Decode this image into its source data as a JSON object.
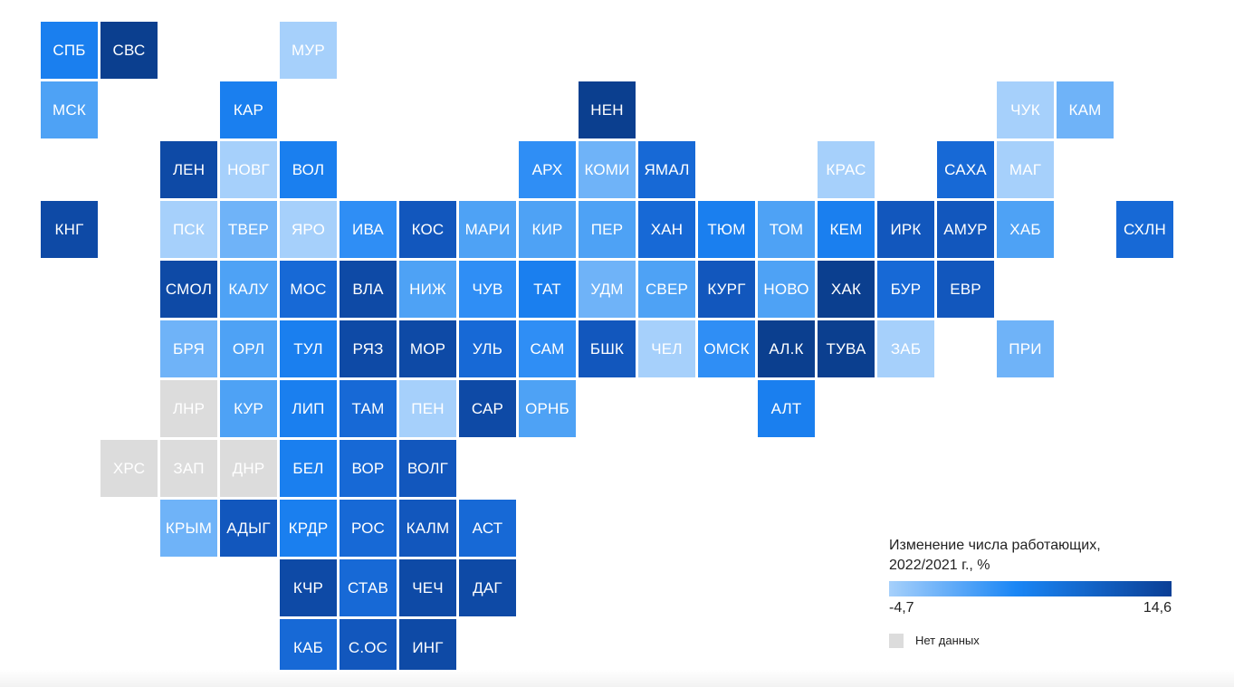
{
  "colors": {
    "l1": "#a6d0fb",
    "l2": "#6fb3f8",
    "m1": "#4ea2f5",
    "m2": "#2f8ef5",
    "m3": "#1a7fef",
    "d1": "#1769d6",
    "d2": "#1257bd",
    "d3": "#0e4aa6",
    "d4": "#0b3f8f",
    "na": "#dcdcdc"
  },
  "regions": [
    {
      "label": "СПБ",
      "c": 0,
      "r": 0,
      "tone": "m3"
    },
    {
      "label": "СВС",
      "c": 1,
      "r": 0,
      "tone": "d4"
    },
    {
      "label": "МУР",
      "c": 4,
      "r": 0,
      "tone": "l1"
    },
    {
      "label": "МСК",
      "c": 0,
      "r": 1,
      "tone": "m1"
    },
    {
      "label": "КАР",
      "c": 3,
      "r": 1,
      "tone": "m3"
    },
    {
      "label": "НЕН",
      "c": 9,
      "r": 1,
      "tone": "d4"
    },
    {
      "label": "ЧУК",
      "c": 16,
      "r": 1,
      "tone": "l1"
    },
    {
      "label": "КАМ",
      "c": 17,
      "r": 1,
      "tone": "l2"
    },
    {
      "label": "ЛЕН",
      "c": 2,
      "r": 2,
      "tone": "d3"
    },
    {
      "label": "НОВГ",
      "c": 3,
      "r": 2,
      "tone": "l1"
    },
    {
      "label": "ВОЛ",
      "c": 4,
      "r": 2,
      "tone": "m3"
    },
    {
      "label": "АРХ",
      "c": 8,
      "r": 2,
      "tone": "m2"
    },
    {
      "label": "КОМИ",
      "c": 9,
      "r": 2,
      "tone": "l2"
    },
    {
      "label": "ЯМАЛ",
      "c": 10,
      "r": 2,
      "tone": "d1"
    },
    {
      "label": "КРАС",
      "c": 13,
      "r": 2,
      "tone": "l1"
    },
    {
      "label": "САХА",
      "c": 15,
      "r": 2,
      "tone": "d1"
    },
    {
      "label": "МАГ",
      "c": 16,
      "r": 2,
      "tone": "l1"
    },
    {
      "label": "КНГ",
      "c": 0,
      "r": 3,
      "tone": "d3"
    },
    {
      "label": "ПСК",
      "c": 2,
      "r": 3,
      "tone": "l1"
    },
    {
      "label": "ТВЕР",
      "c": 3,
      "r": 3,
      "tone": "l2"
    },
    {
      "label": "ЯРО",
      "c": 4,
      "r": 3,
      "tone": "l1"
    },
    {
      "label": "ИВА",
      "c": 5,
      "r": 3,
      "tone": "m2"
    },
    {
      "label": "КОС",
      "c": 6,
      "r": 3,
      "tone": "d2"
    },
    {
      "label": "МАРИ",
      "c": 7,
      "r": 3,
      "tone": "m1"
    },
    {
      "label": "КИР",
      "c": 8,
      "r": 3,
      "tone": "m1"
    },
    {
      "label": "ПЕР",
      "c": 9,
      "r": 3,
      "tone": "m1"
    },
    {
      "label": "ХАН",
      "c": 10,
      "r": 3,
      "tone": "d1"
    },
    {
      "label": "ТЮМ",
      "c": 11,
      "r": 3,
      "tone": "m3"
    },
    {
      "label": "ТОМ",
      "c": 12,
      "r": 3,
      "tone": "m1"
    },
    {
      "label": "КЕМ",
      "c": 13,
      "r": 3,
      "tone": "m3"
    },
    {
      "label": "ИРК",
      "c": 14,
      "r": 3,
      "tone": "d2"
    },
    {
      "label": "АМУР",
      "c": 15,
      "r": 3,
      "tone": "d2"
    },
    {
      "label": "ХАБ",
      "c": 16,
      "r": 3,
      "tone": "m1"
    },
    {
      "label": "СХЛН",
      "c": 18,
      "r": 3,
      "tone": "d1"
    },
    {
      "label": "СМОЛ",
      "c": 2,
      "r": 4,
      "tone": "d3"
    },
    {
      "label": "КАЛУ",
      "c": 3,
      "r": 4,
      "tone": "m1"
    },
    {
      "label": "МОС",
      "c": 4,
      "r": 4,
      "tone": "d1"
    },
    {
      "label": "ВЛА",
      "c": 5,
      "r": 4,
      "tone": "d3"
    },
    {
      "label": "НИЖ",
      "c": 6,
      "r": 4,
      "tone": "m1"
    },
    {
      "label": "ЧУВ",
      "c": 7,
      "r": 4,
      "tone": "m2"
    },
    {
      "label": "ТАТ",
      "c": 8,
      "r": 4,
      "tone": "m3"
    },
    {
      "label": "УДМ",
      "c": 9,
      "r": 4,
      "tone": "l2"
    },
    {
      "label": "СВЕР",
      "c": 10,
      "r": 4,
      "tone": "m1"
    },
    {
      "label": "КУРГ",
      "c": 11,
      "r": 4,
      "tone": "d2"
    },
    {
      "label": "НОВО",
      "c": 12,
      "r": 4,
      "tone": "m1"
    },
    {
      "label": "ХАК",
      "c": 13,
      "r": 4,
      "tone": "d4"
    },
    {
      "label": "БУР",
      "c": 14,
      "r": 4,
      "tone": "d1"
    },
    {
      "label": "ЕВР",
      "c": 15,
      "r": 4,
      "tone": "d2"
    },
    {
      "label": "БРЯ",
      "c": 2,
      "r": 5,
      "tone": "l2"
    },
    {
      "label": "ОРЛ",
      "c": 3,
      "r": 5,
      "tone": "m1"
    },
    {
      "label": "ТУЛ",
      "c": 4,
      "r": 5,
      "tone": "m3"
    },
    {
      "label": "РЯЗ",
      "c": 5,
      "r": 5,
      "tone": "d3"
    },
    {
      "label": "МОР",
      "c": 6,
      "r": 5,
      "tone": "d3"
    },
    {
      "label": "УЛЬ",
      "c": 7,
      "r": 5,
      "tone": "d1"
    },
    {
      "label": "САМ",
      "c": 8,
      "r": 5,
      "tone": "m2"
    },
    {
      "label": "БШК",
      "c": 9,
      "r": 5,
      "tone": "d2"
    },
    {
      "label": "ЧЕЛ",
      "c": 10,
      "r": 5,
      "tone": "l1"
    },
    {
      "label": "ОМСК",
      "c": 11,
      "r": 5,
      "tone": "m2"
    },
    {
      "label": "АЛ.К",
      "c": 12,
      "r": 5,
      "tone": "d4"
    },
    {
      "label": "ТУВА",
      "c": 13,
      "r": 5,
      "tone": "d4"
    },
    {
      "label": "ЗАБ",
      "c": 14,
      "r": 5,
      "tone": "l1"
    },
    {
      "label": "ПРИ",
      "c": 16,
      "r": 5,
      "tone": "l2"
    },
    {
      "label": "ЛНР",
      "c": 2,
      "r": 6,
      "tone": "na"
    },
    {
      "label": "КУР",
      "c": 3,
      "r": 6,
      "tone": "m1"
    },
    {
      "label": "ЛИП",
      "c": 4,
      "r": 6,
      "tone": "m3"
    },
    {
      "label": "ТАМ",
      "c": 5,
      "r": 6,
      "tone": "d1"
    },
    {
      "label": "ПЕН",
      "c": 6,
      "r": 6,
      "tone": "l1"
    },
    {
      "label": "САР",
      "c": 7,
      "r": 6,
      "tone": "d3"
    },
    {
      "label": "ОРНБ",
      "c": 8,
      "r": 6,
      "tone": "m1"
    },
    {
      "label": "АЛТ",
      "c": 12,
      "r": 6,
      "tone": "m3"
    },
    {
      "label": "ХРС",
      "c": 1,
      "r": 7,
      "tone": "na"
    },
    {
      "label": "ЗАП",
      "c": 2,
      "r": 7,
      "tone": "na"
    },
    {
      "label": "ДНР",
      "c": 3,
      "r": 7,
      "tone": "na"
    },
    {
      "label": "БЕЛ",
      "c": 4,
      "r": 7,
      "tone": "m3"
    },
    {
      "label": "ВОР",
      "c": 5,
      "r": 7,
      "tone": "d1"
    },
    {
      "label": "ВОЛГ",
      "c": 6,
      "r": 7,
      "tone": "d2"
    },
    {
      "label": "КРЫМ",
      "c": 2,
      "r": 8,
      "tone": "l2"
    },
    {
      "label": "АДЫГ",
      "c": 3,
      "r": 8,
      "tone": "d2"
    },
    {
      "label": "КРДР",
      "c": 4,
      "r": 8,
      "tone": "m3"
    },
    {
      "label": "РОС",
      "c": 5,
      "r": 8,
      "tone": "d1"
    },
    {
      "label": "КАЛМ",
      "c": 6,
      "r": 8,
      "tone": "d2"
    },
    {
      "label": "АСТ",
      "c": 7,
      "r": 8,
      "tone": "d1"
    },
    {
      "label": "КЧР",
      "c": 4,
      "r": 9,
      "tone": "d3"
    },
    {
      "label": "СТАВ",
      "c": 5,
      "r": 9,
      "tone": "d1"
    },
    {
      "label": "ЧЕЧ",
      "c": 6,
      "r": 9,
      "tone": "d3"
    },
    {
      "label": "ДАГ",
      "c": 7,
      "r": 9,
      "tone": "d3"
    },
    {
      "label": "КАБ",
      "c": 4,
      "r": 10,
      "tone": "d1"
    },
    {
      "label": "С.ОС",
      "c": 5,
      "r": 10,
      "tone": "d2"
    },
    {
      "label": "ИНГ",
      "c": 6,
      "r": 10,
      "tone": "d3"
    }
  ],
  "legend": {
    "title_line1": "Изменение числа работающих,",
    "title_line2": "2022/2021 г., %",
    "min": "-4,7",
    "max": "14,6",
    "no_data": "Нет данных"
  }
}
